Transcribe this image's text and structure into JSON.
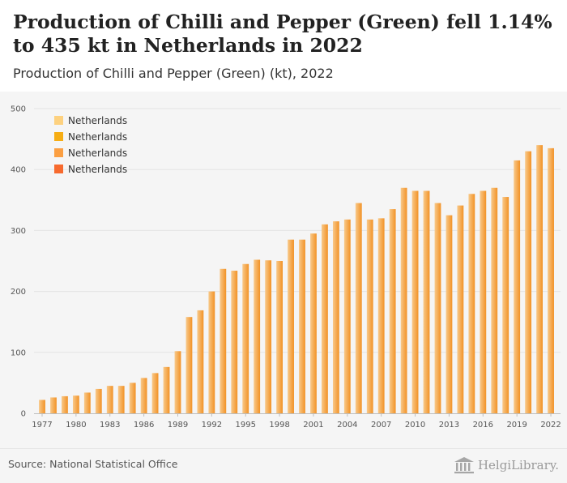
{
  "header": {
    "title": "Production of Chilli and Pepper (Green) fell 1.14% to 435 kt in Netherlands in 2022",
    "subtitle": "Production of Chilli and Pepper (Green) (kt), 2022"
  },
  "footer": {
    "source": "Source: National Statistical Office",
    "logo_text": "HelgiLibrary."
  },
  "colors": {
    "bar_light": "#f8c98a",
    "bar_dark": "#f29226",
    "grid": "#e4e4e4",
    "legend": [
      "#fdd17f",
      "#f6ad13",
      "#fb9f42",
      "#f76a2e"
    ]
  },
  "chart_data": {
    "type": "bar",
    "ylim": [
      0,
      500
    ],
    "yticks": [
      0,
      100,
      200,
      300,
      400,
      500
    ],
    "xtick_labels": [
      "1977",
      "1980",
      "1983",
      "1986",
      "1989",
      "1992",
      "1995",
      "1998",
      "2001",
      "2004",
      "2007",
      "2010",
      "2013",
      "2016",
      "2019",
      "2022"
    ],
    "legend": [
      "Netherlands",
      "Netherlands",
      "Netherlands",
      "Netherlands"
    ],
    "legend_position": "top-left",
    "grid": true,
    "categories": [
      "1977",
      "1978",
      "1979",
      "1980",
      "1981",
      "1982",
      "1983",
      "1984",
      "1985",
      "1986",
      "1987",
      "1988",
      "1989",
      "1990",
      "1991",
      "1992",
      "1993",
      "1994",
      "1995",
      "1996",
      "1997",
      "1998",
      "1999",
      "2000",
      "2001",
      "2002",
      "2003",
      "2004",
      "2005",
      "2006",
      "2007",
      "2008",
      "2009",
      "2010",
      "2011",
      "2012",
      "2013",
      "2014",
      "2015",
      "2016",
      "2017",
      "2018",
      "2019",
      "2020",
      "2021",
      "2022"
    ],
    "series": [
      {
        "name": "Netherlands",
        "values": [
          22,
          26,
          28,
          29,
          34,
          40,
          45,
          45,
          50,
          58,
          66,
          76,
          102,
          158,
          169,
          200,
          237,
          234,
          245,
          252,
          251,
          250,
          285,
          285,
          295,
          310,
          315,
          318,
          345,
          318,
          320,
          335,
          370,
          365,
          365,
          345,
          325,
          341,
          360,
          365,
          370,
          355,
          415,
          430,
          440,
          435
        ]
      }
    ]
  }
}
